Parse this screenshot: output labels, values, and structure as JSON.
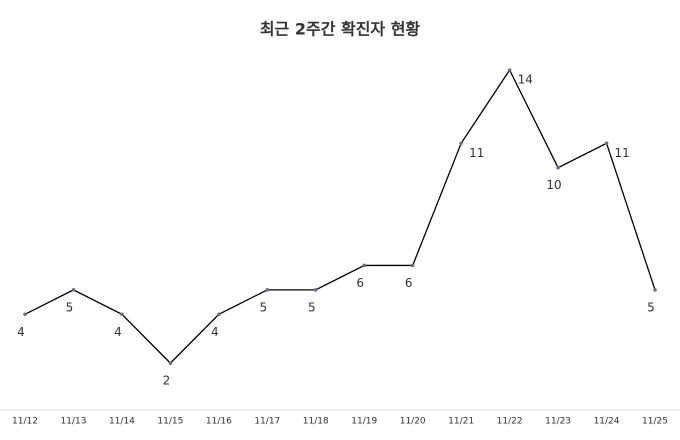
{
  "chart_data": {
    "type": "line",
    "title": "최근 2주간 확진자 현황",
    "categories": [
      "11/12",
      "11/13",
      "11/14",
      "11/15",
      "11/16",
      "11/17",
      "11/18",
      "11/19",
      "11/20",
      "11/21",
      "11/22",
      "11/23",
      "11/24",
      "11/25"
    ],
    "values": [
      4,
      5,
      4,
      2,
      4,
      5,
      5,
      6,
      6,
      11,
      14,
      10,
      11,
      5
    ],
    "color": "#000000"
  }
}
